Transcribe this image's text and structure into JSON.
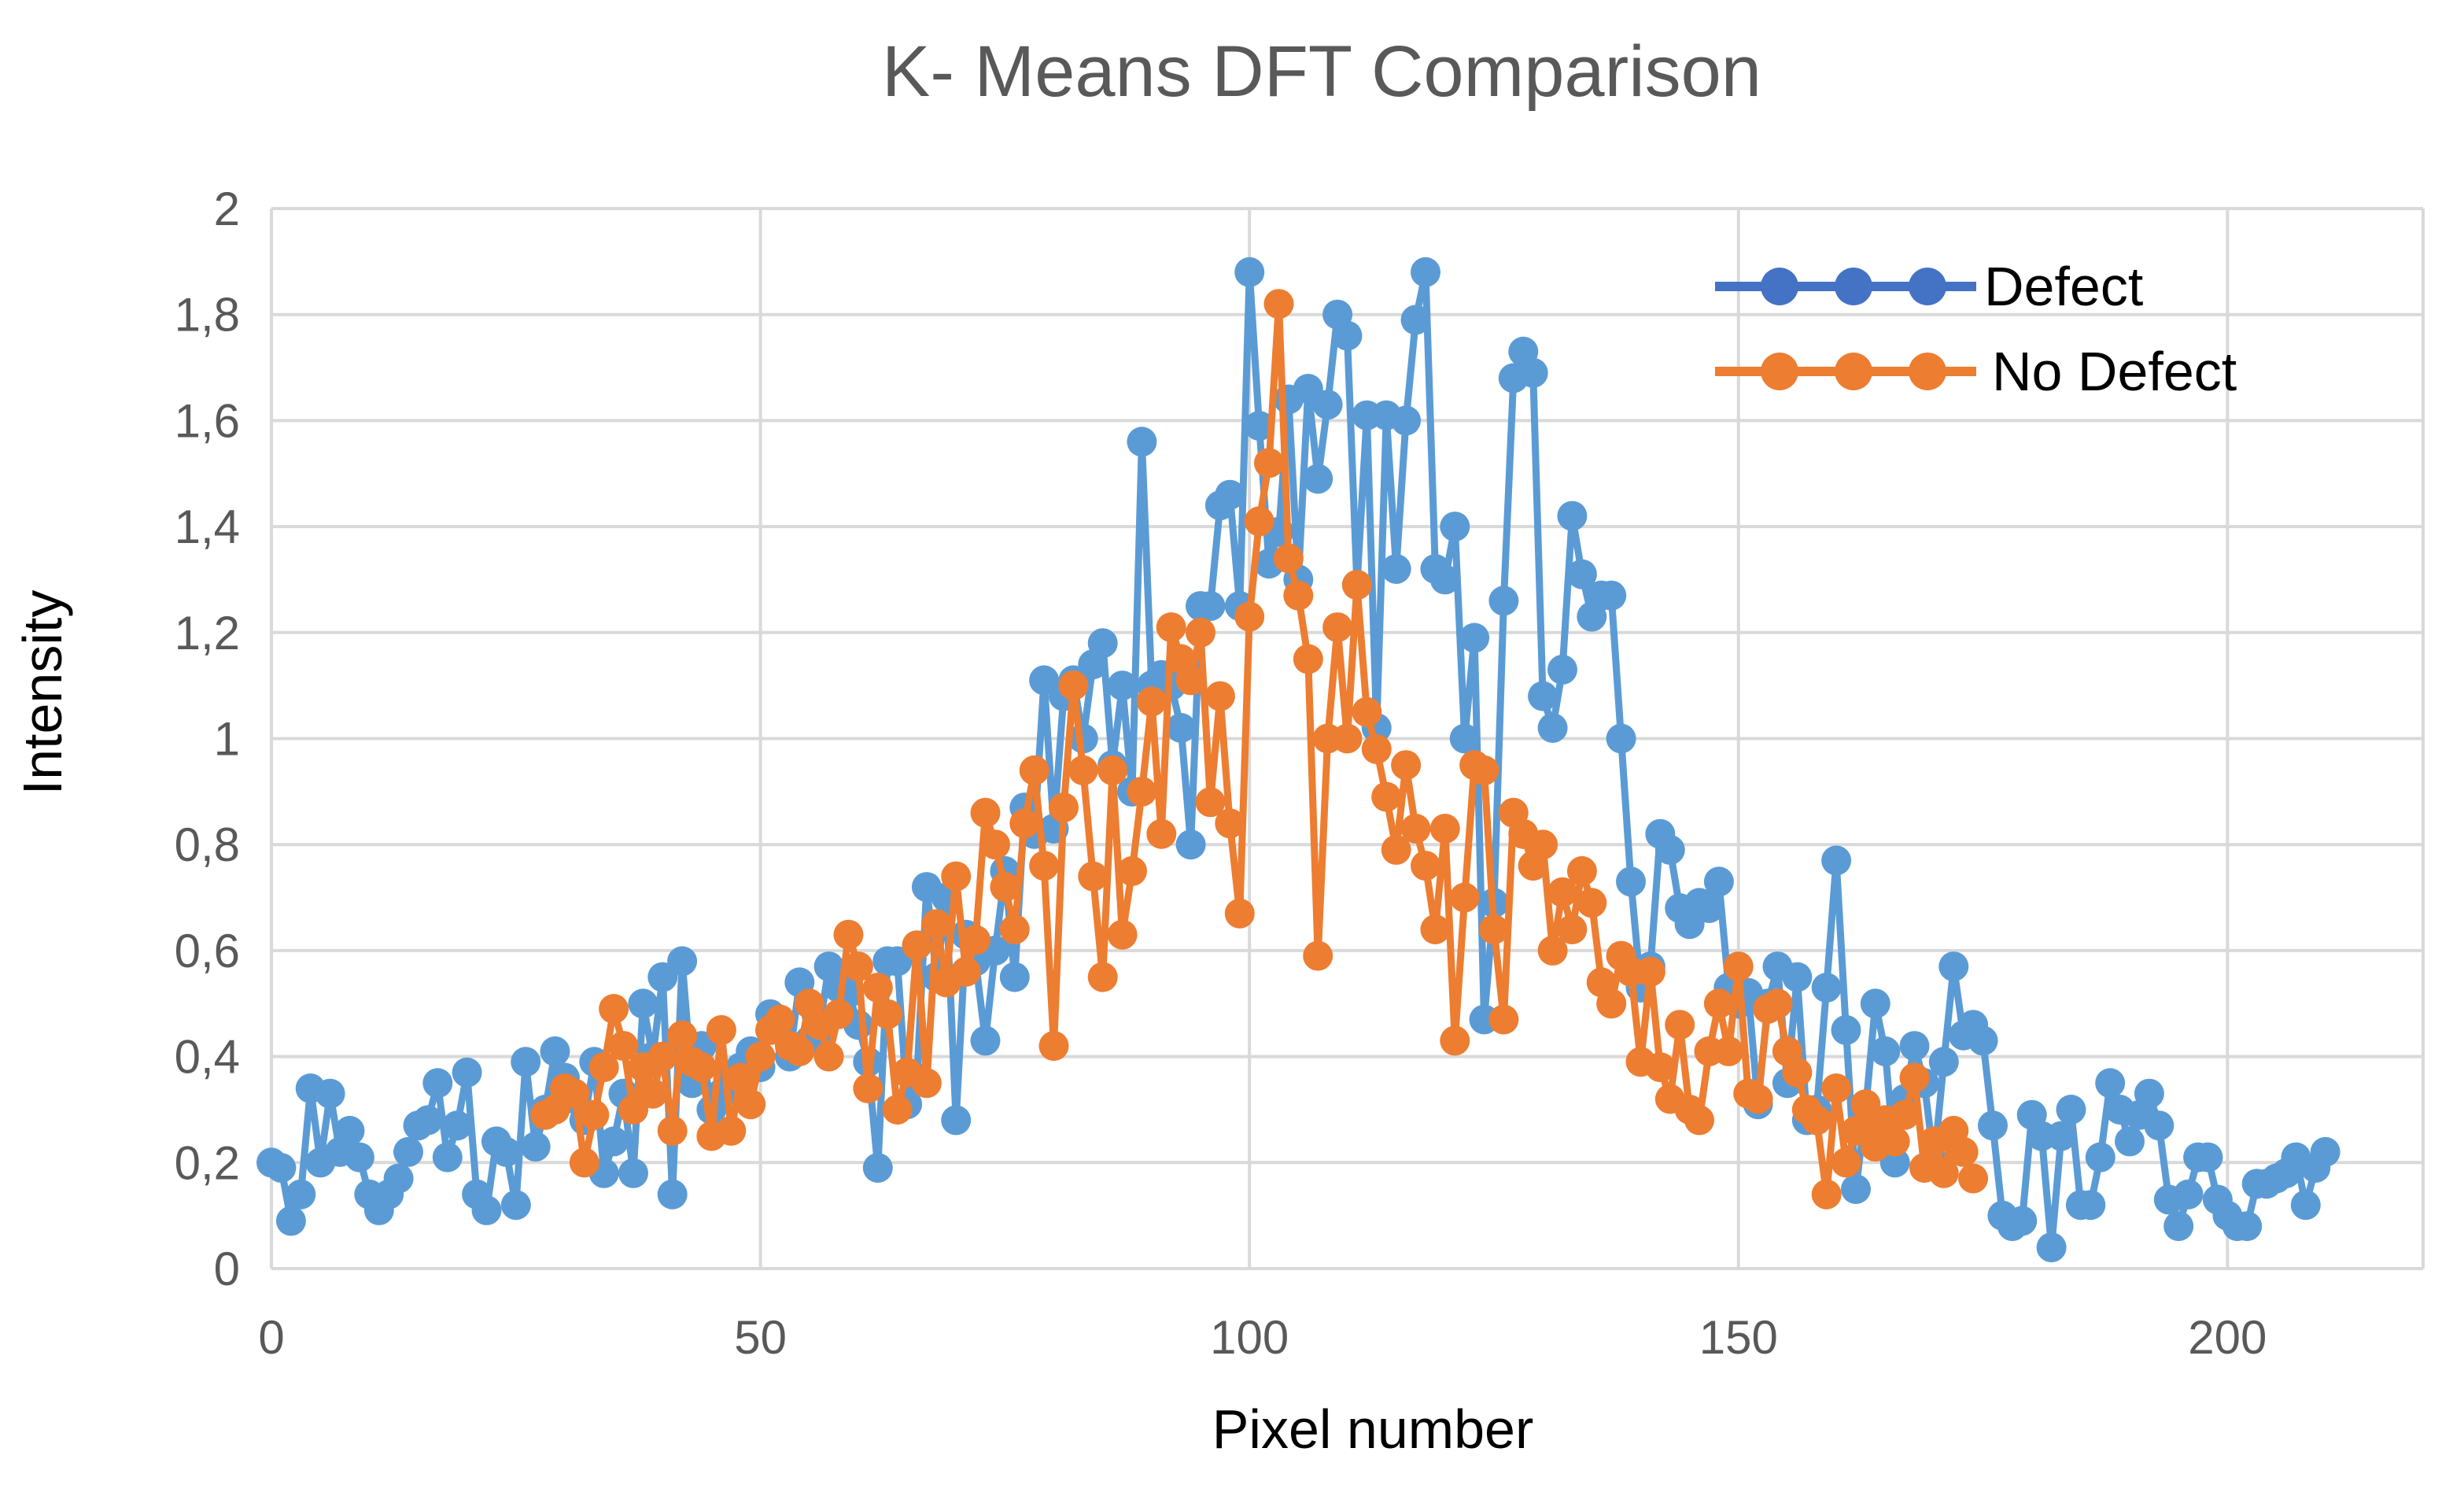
{
  "chart_data": {
    "type": "line",
    "title": "K- Means DFT Comparison",
    "xlabel": "Pixel number",
    "ylabel": "Intensity",
    "xlim": [
      0,
      220
    ],
    "ylim": [
      0,
      2
    ],
    "xticks": [
      0,
      50,
      100,
      150,
      200
    ],
    "yticks": [
      0,
      0.2,
      0.4,
      0.6,
      0.8,
      1,
      1.2,
      1.4,
      1.6,
      1.8,
      2
    ],
    "ytick_labels": [
      "0",
      "0,2",
      "0,4",
      "0,6",
      "0,8",
      "1",
      "1,2",
      "1,4",
      "1,6",
      "1,8",
      "2"
    ],
    "grid": true,
    "legend_position": "top-right",
    "series": [
      {
        "name": "Defect",
        "color": "#5B9BD5",
        "legend_color": "#4472C4",
        "x_start": 0,
        "values": [
          0.2,
          0.19,
          0.09,
          0.14,
          0.34,
          0.2,
          0.33,
          0.22,
          0.26,
          0.21,
          0.14,
          0.11,
          0.14,
          0.17,
          0.22,
          0.27,
          0.28,
          0.35,
          0.21,
          0.27,
          0.37,
          0.14,
          0.11,
          0.24,
          0.22,
          0.12,
          0.39,
          0.23,
          0.3,
          0.41,
          0.36,
          0.32,
          0.28,
          0.39,
          0.18,
          0.24,
          0.33,
          0.18,
          0.5,
          0.4,
          0.55,
          0.14,
          0.58,
          0.35,
          0.42,
          0.3,
          0.33,
          0.36,
          0.38,
          0.41,
          0.38,
          0.48,
          0.46,
          0.4,
          0.54,
          0.43,
          0.45,
          0.57,
          0.53,
          0.52,
          0.46,
          0.39,
          0.19,
          0.58,
          0.58,
          0.31,
          0.36,
          0.72,
          0.55,
          0.7,
          0.28,
          0.63,
          0.58,
          0.43,
          0.6,
          0.75,
          0.55,
          0.87,
          0.82,
          1.11,
          0.83,
          1.08,
          1.11,
          1.0,
          1.14,
          1.18,
          0.95,
          1.1,
          0.9,
          1.56,
          1.1,
          1.12,
          1.1,
          1.02,
          0.8,
          1.25,
          1.25,
          1.44,
          1.46,
          1.25,
          1.88,
          1.59,
          1.33,
          1.39,
          1.64,
          1.3,
          1.66,
          1.49,
          1.63,
          1.8,
          1.76,
          1.29,
          1.61,
          1.02,
          1.61,
          1.32,
          1.6,
          1.79,
          1.88,
          1.32,
          1.3,
          1.4,
          1.0,
          1.19,
          0.47,
          0.69,
          1.26,
          1.68,
          1.73,
          1.69,
          1.08,
          1.02,
          1.13,
          1.42,
          1.31,
          1.23,
          1.27,
          1.27,
          1.0,
          0.73,
          0.53,
          0.57,
          0.82,
          0.79,
          0.68,
          0.65,
          0.69,
          0.68,
          0.73,
          0.53,
          0.5,
          0.52,
          0.31,
          0.5,
          0.57,
          0.35,
          0.55,
          0.28,
          0.3,
          0.53,
          0.77,
          0.45,
          0.15,
          0.3,
          0.5,
          0.41,
          0.2,
          0.32,
          0.42,
          0.35,
          0.2,
          0.39,
          0.57,
          0.44,
          0.46,
          0.43,
          0.27,
          0.1,
          0.08,
          0.09,
          0.29,
          0.25,
          0.04,
          0.25,
          0.3,
          0.12,
          0.12,
          0.21,
          0.35,
          0.3,
          0.24,
          0.29,
          0.33,
          0.27,
          0.13,
          0.08,
          0.14,
          0.21,
          0.21,
          0.13,
          0.1,
          0.08,
          0.08,
          0.16,
          0.16,
          0.17,
          0.18,
          0.21,
          0.12,
          0.19,
          0.22
        ]
      },
      {
        "name": "No Defect",
        "color": "#ED7D31",
        "legend_color": "#ED7D31",
        "x_start": 28,
        "values": [
          0.29,
          0.3,
          0.34,
          0.33,
          0.2,
          0.29,
          0.38,
          0.49,
          0.42,
          0.3,
          0.38,
          0.33,
          0.4,
          0.26,
          0.44,
          0.39,
          0.38,
          0.25,
          0.45,
          0.26,
          0.36,
          0.31,
          0.4,
          0.45,
          0.47,
          0.42,
          0.41,
          0.5,
          0.46,
          0.4,
          0.48,
          0.63,
          0.57,
          0.34,
          0.53,
          0.48,
          0.3,
          0.37,
          0.61,
          0.35,
          0.65,
          0.54,
          0.74,
          0.56,
          0.62,
          0.86,
          0.8,
          0.72,
          0.64,
          0.84,
          0.94,
          0.76,
          0.42,
          0.87,
          1.1,
          0.94,
          0.74,
          0.55,
          0.94,
          0.63,
          0.75,
          0.9,
          1.07,
          0.82,
          1.21,
          1.15,
          1.11,
          1.2,
          0.88,
          1.08,
          0.84,
          0.67,
          1.23,
          1.41,
          1.52,
          1.82,
          1.34,
          1.27,
          1.15,
          0.59,
          1.0,
          1.21,
          1.0,
          1.29,
          1.05,
          0.98,
          0.89,
          0.79,
          0.95,
          0.83,
          0.76,
          0.64,
          0.83,
          0.43,
          0.7,
          0.95,
          0.94,
          0.64,
          0.47,
          0.86,
          0.82,
          0.76,
          0.8,
          0.6,
          0.71,
          0.64,
          0.75,
          0.69,
          0.54,
          0.5,
          0.59,
          0.56,
          0.39,
          0.56,
          0.38,
          0.32,
          0.46,
          0.3,
          0.28,
          0.41,
          0.5,
          0.41,
          0.57,
          0.33,
          0.32,
          0.49,
          0.5,
          0.41,
          0.37,
          0.3,
          0.28,
          0.14,
          0.34,
          0.2,
          0.26,
          0.31,
          0.23,
          0.28,
          0.24,
          0.29,
          0.36,
          0.19,
          0.24,
          0.18,
          0.26,
          0.22,
          0.17
        ]
      }
    ]
  }
}
